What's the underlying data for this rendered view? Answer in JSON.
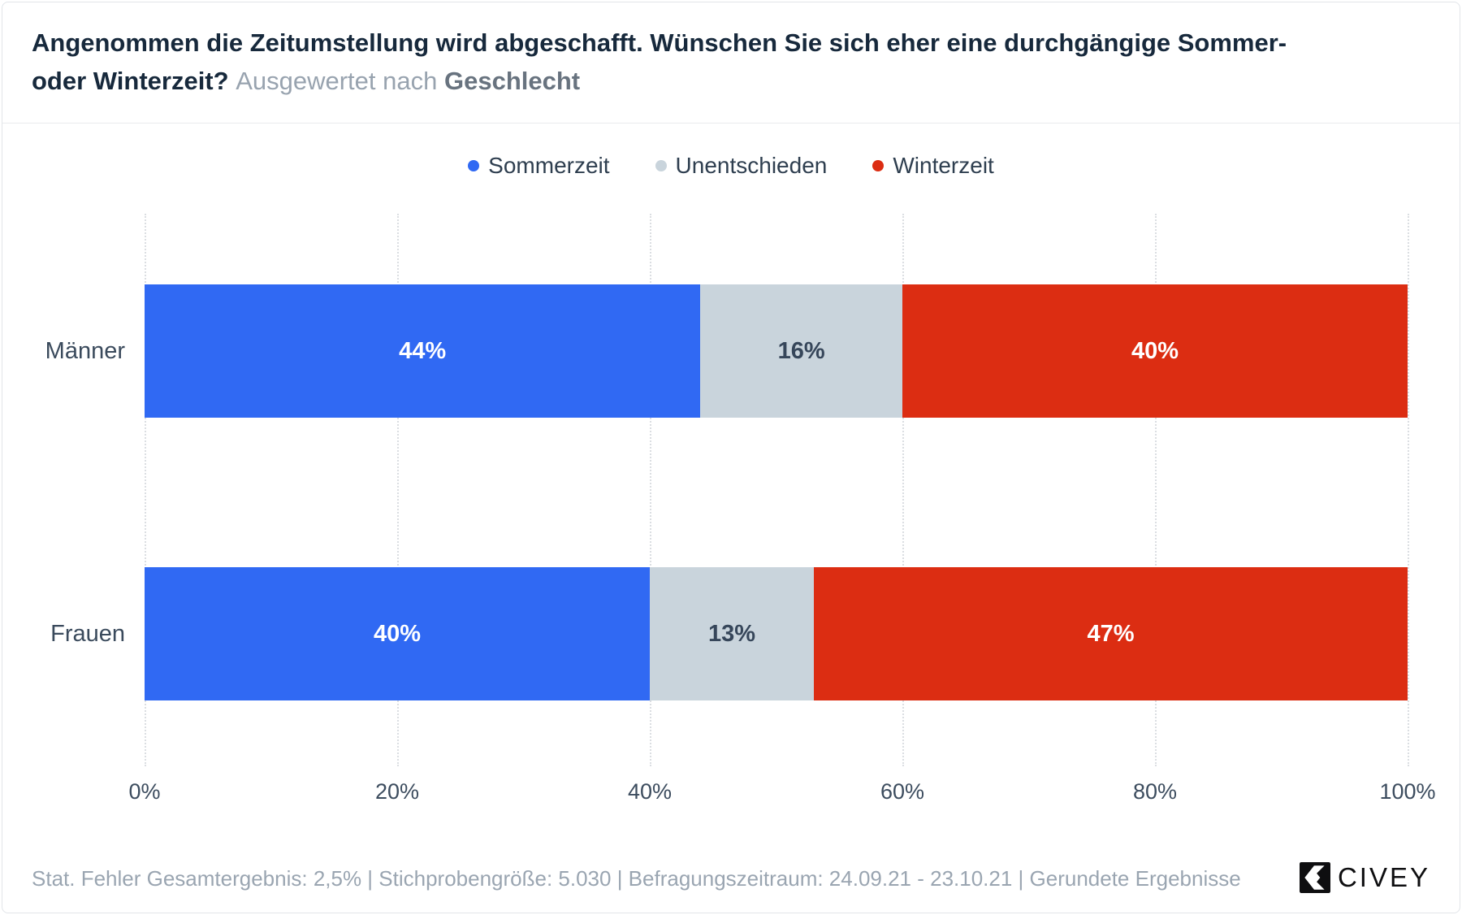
{
  "header": {
    "title_line1": "Angenommen die Zeitumstellung wird abgeschafft. Wünschen Sie sich eher eine durchgängige Sommer-",
    "title_line2_bold": "oder Winterzeit?",
    "subtitle_prefix": "Ausgewertet nach",
    "subtitle_emphasis": "Geschlecht"
  },
  "legend": [
    {
      "label": "Sommerzeit",
      "color": "#3069f3"
    },
    {
      "label": "Unentschieden",
      "color": "#c9d4dc"
    },
    {
      "label": "Winterzeit",
      "color": "#dc2d12"
    }
  ],
  "chart_data": {
    "type": "bar",
    "orientation": "horizontal",
    "stacked": true,
    "categories": [
      "Männer",
      "Frauen"
    ],
    "series": [
      {
        "name": "Sommerzeit",
        "color": "#3069f3",
        "text_color": "#ffffff",
        "values": [
          44,
          40
        ]
      },
      {
        "name": "Unentschieden",
        "color": "#c9d4dc",
        "text_color": "#36465a",
        "values": [
          16,
          13
        ]
      },
      {
        "name": "Winterzeit",
        "color": "#dc2d12",
        "text_color": "#ffffff",
        "values": [
          40,
          47
        ]
      }
    ],
    "value_suffix": "%",
    "xlim": [
      0,
      100
    ],
    "x_ticks": [
      0,
      20,
      40,
      60,
      80,
      100
    ],
    "x_tick_labels": [
      "0%",
      "20%",
      "40%",
      "60%",
      "80%",
      "100%"
    ],
    "grid": "vertical-dotted",
    "legend_position": "top-center",
    "title": "Angenommen die Zeitumstellung wird abgeschafft. Wünschen Sie sich eher eine durchgängige Sommer- oder Winterzeit?",
    "subtitle": "Ausgewertet nach Geschlecht"
  },
  "footer": {
    "note": "Stat. Fehler Gesamtergebnis: 2,5% | Stichprobengröße: 5.030 | Befragungszeitraum: 24.09.21 - 23.10.21 | Gerundete Ergebnisse",
    "brand": "CIVEY"
  }
}
